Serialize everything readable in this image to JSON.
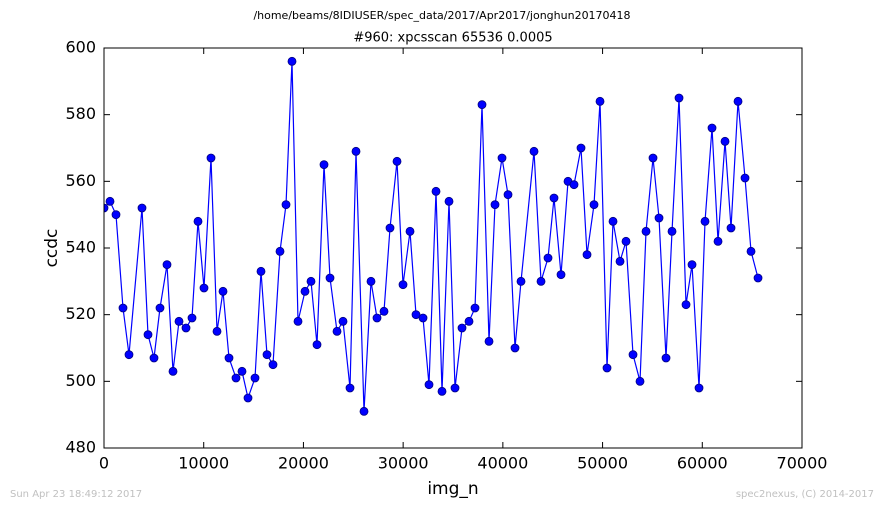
{
  "chart_data": {
    "type": "line",
    "suptitle": "/home/beams/8IDIUSER/spec_data/2017/Apr2017/jonghun20170418",
    "title": "#960: xpcsscan 65536 0.0005",
    "xlabel": "img_n",
    "ylabel": "ccdc",
    "footer_left": "Sun Apr 23 18:49:12 2017",
    "footer_right": "spec2nexus, (C) 2014-2017",
    "x": [
      0,
      602,
      1203,
      1905,
      2507,
      3811,
      4413,
      5014,
      5616,
      6318,
      6920,
      7522,
      8224,
      8826,
      9427,
      10029,
      10731,
      11333,
      11935,
      12536,
      13238,
      13840,
      14442,
      15144,
      15745,
      16347,
      16949,
      17651,
      18253,
      18854,
      19456,
      20158,
      20760,
      21362,
      22064,
      22665,
      23368,
      23969,
      24671,
      25273,
      26075,
      26777,
      27379,
      28081,
      28683,
      29385,
      29987,
      30689,
      31290,
      31993,
      32594,
      33296,
      33898,
      34600,
      35202,
      35904,
      36606,
      37208,
      37909,
      38612,
      39213,
      39915,
      40517,
      41219,
      41821,
      43125,
      43827,
      44529,
      45130,
      45833,
      46535,
      47136,
      47838,
      48440,
      49142,
      49744,
      50446,
      51048,
      51750,
      52351,
      53053,
      53755,
      54357,
      55059,
      55661,
      56363,
      56965,
      57667,
      58369,
      58971,
      59673,
      60274,
      60976,
      61578,
      62280,
      62882,
      63584,
      64286,
      64888,
      65590
    ],
    "series": [
      {
        "name": "ccdc",
        "color": "#0000ff",
        "marker_edge": "#000080",
        "values": [
          552,
          554,
          550,
          522,
          508,
          552,
          514,
          507,
          522,
          535,
          503,
          518,
          516,
          519,
          548,
          528,
          567,
          515,
          527,
          507,
          501,
          503,
          495,
          501,
          533,
          508,
          505,
          539,
          553,
          596,
          518,
          527,
          530,
          511,
          565,
          531,
          515,
          518,
          498,
          569,
          491,
          530,
          519,
          521,
          546,
          566,
          529,
          545,
          520,
          519,
          499,
          557,
          497,
          554,
          498,
          516,
          518,
          522,
          583,
          512,
          553,
          567,
          556,
          510,
          530,
          569,
          530,
          537,
          555,
          532,
          560,
          559,
          570,
          538,
          553,
          584,
          504,
          548,
          536,
          542,
          508,
          500,
          545,
          567,
          549,
          507,
          545,
          585,
          523,
          535,
          498,
          548,
          576,
          542,
          572,
          546,
          584,
          561,
          539,
          531
        ]
      }
    ],
    "xlim": [
      0,
      70000
    ],
    "xticks": [
      0,
      10000,
      20000,
      30000,
      40000,
      50000,
      60000,
      70000
    ],
    "ylim": [
      480,
      600
    ],
    "yticks": [
      480,
      500,
      520,
      540,
      560,
      580,
      600
    ]
  }
}
